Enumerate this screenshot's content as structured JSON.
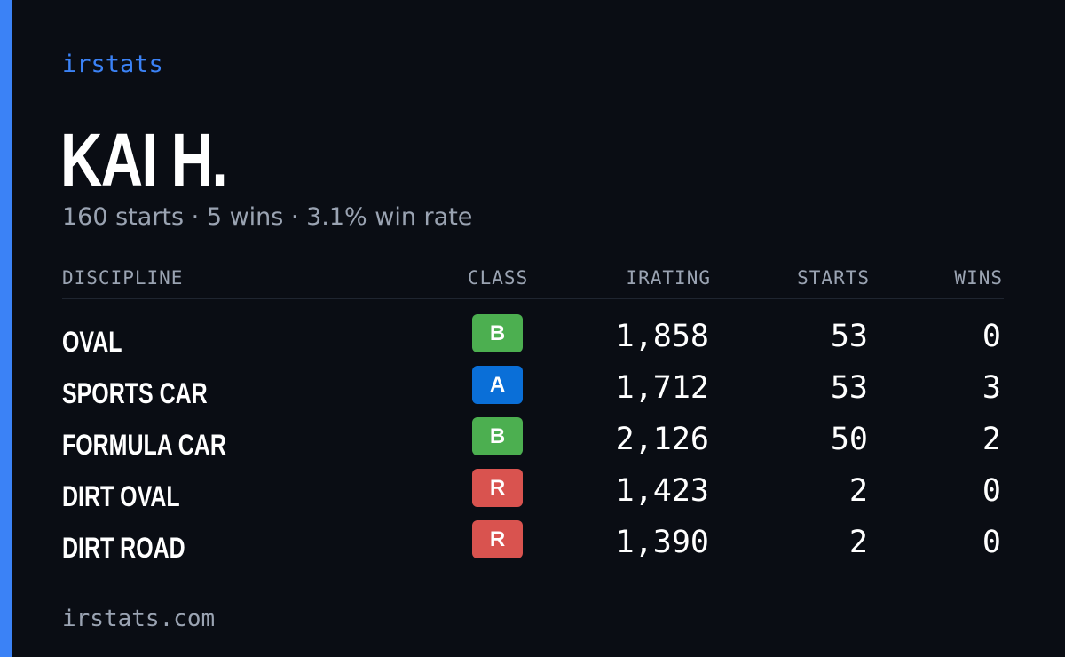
{
  "brand": "irstats",
  "player": {
    "name": "KAI H.",
    "summary": "160 starts · 5 wins · 3.1% win rate"
  },
  "table": {
    "headers": {
      "discipline": "DISCIPLINE",
      "class": "CLASS",
      "irating": "IRATING",
      "starts": "STARTS",
      "wins": "WINS"
    },
    "rows": [
      {
        "discipline": "OVAL",
        "class": "B",
        "irating": "1,858",
        "starts": "53",
        "wins": "0"
      },
      {
        "discipline": "SPORTS CAR",
        "class": "A",
        "irating": "1,712",
        "starts": "53",
        "wins": "3"
      },
      {
        "discipline": "FORMULA CAR",
        "class": "B",
        "irating": "2,126",
        "starts": "50",
        "wins": "2"
      },
      {
        "discipline": "DIRT OVAL",
        "class": "R",
        "irating": "1,423",
        "starts": "2",
        "wins": "0"
      },
      {
        "discipline": "DIRT ROAD",
        "class": "R",
        "irating": "1,390",
        "starts": "2",
        "wins": "0"
      }
    ]
  },
  "class_colors": {
    "A": "#0a6fd8",
    "B": "#4caf50",
    "R": "#d9534f"
  },
  "footer": "irstats.com",
  "colors": {
    "accent": "#3b82f6",
    "background": "#0a0d14",
    "muted_text": "#9aa3b2"
  }
}
